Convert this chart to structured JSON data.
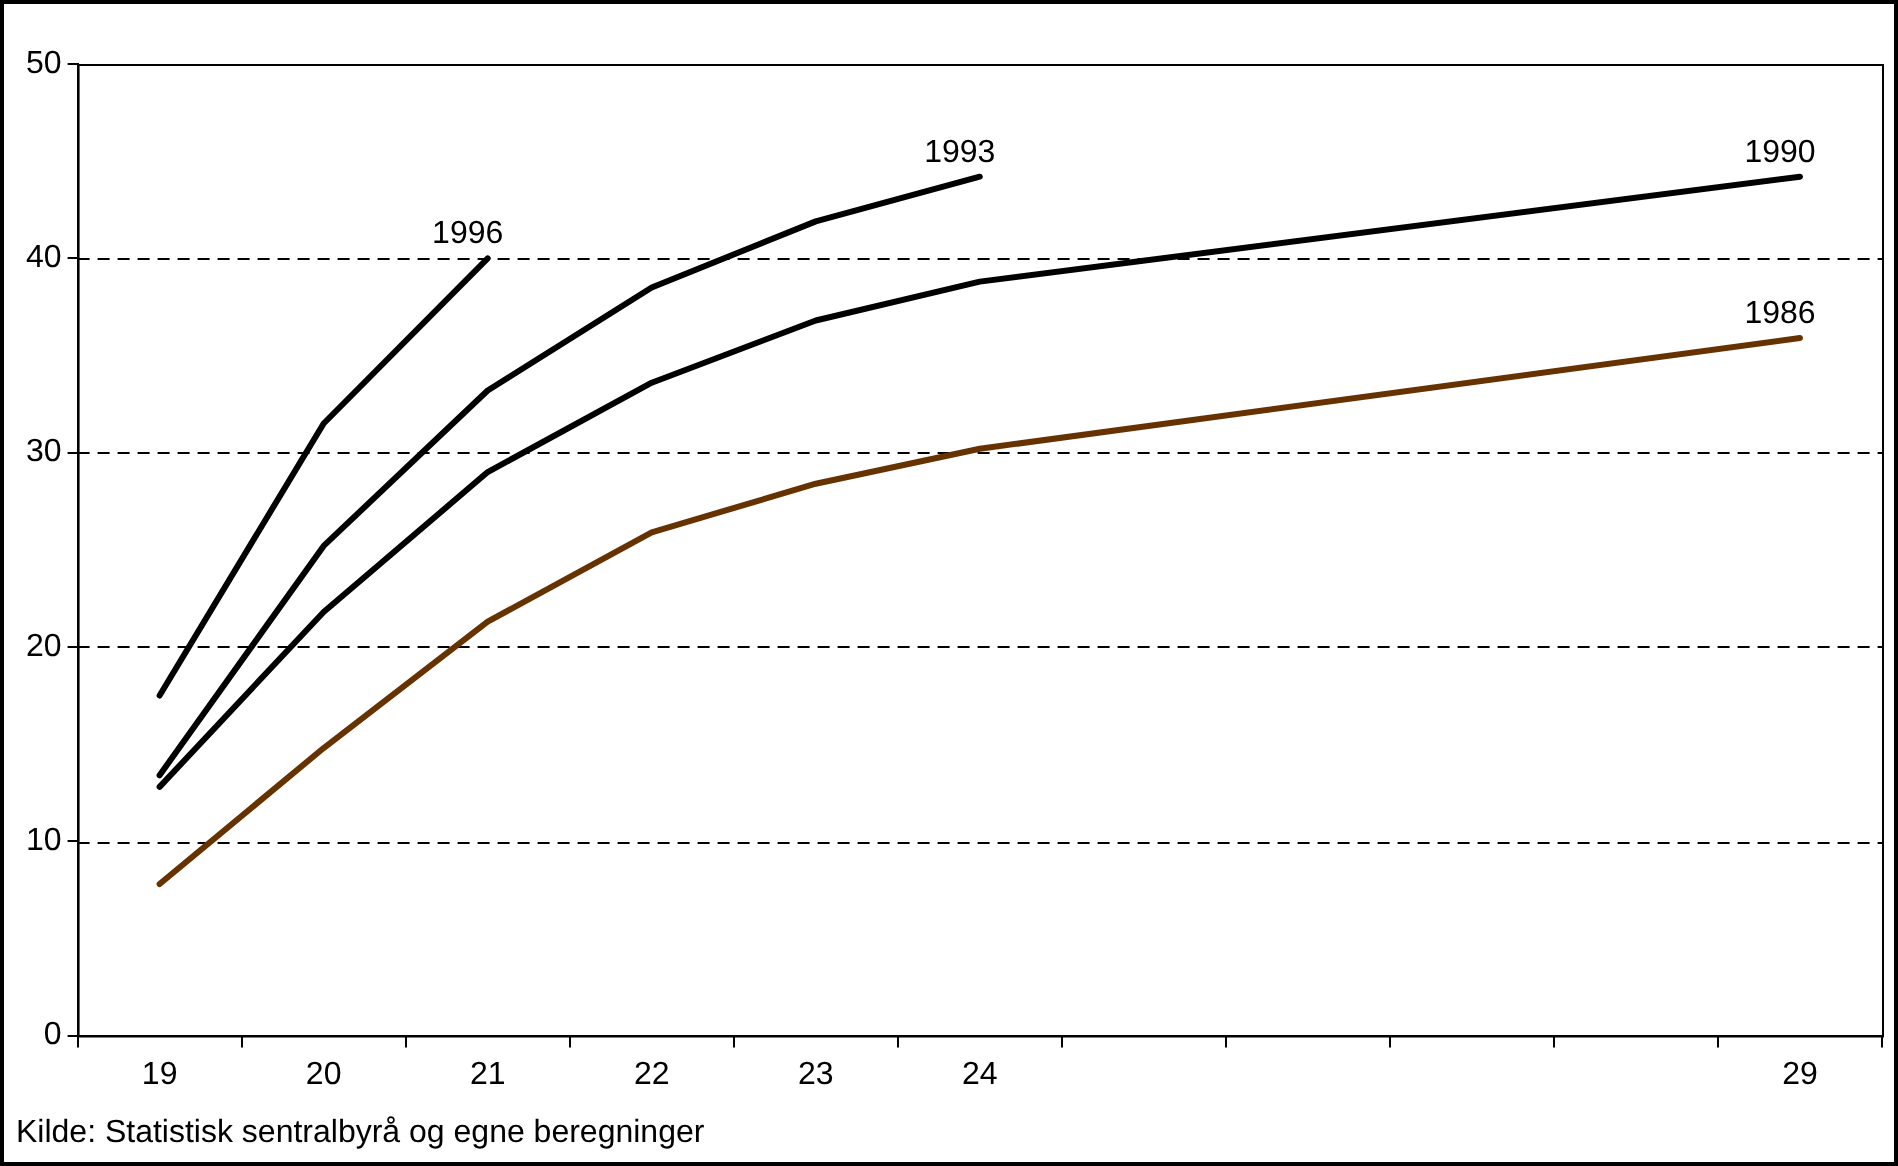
{
  "chart_data": {
    "type": "line",
    "categories": [
      "19",
      "20",
      "21",
      "22",
      "23",
      "24",
      null,
      null,
      null,
      null,
      "29"
    ],
    "series": [
      {
        "name": "1996",
        "color": "#000000",
        "values": [
          17.5,
          31.5,
          40.0,
          null,
          null,
          null,
          null,
          null,
          null,
          null,
          null
        ]
      },
      {
        "name": "1993",
        "color": "#000000",
        "values": [
          13.4,
          25.2,
          33.2,
          38.5,
          41.9,
          44.2,
          null,
          null,
          null,
          null,
          null
        ]
      },
      {
        "name": "1990",
        "color": "#000000",
        "values": [
          12.8,
          21.8,
          29.0,
          33.6,
          36.8,
          38.8,
          null,
          null,
          null,
          null,
          44.2
        ]
      },
      {
        "name": "1986",
        "color": "#663300",
        "values": [
          7.8,
          14.8,
          21.3,
          25.9,
          28.4,
          30.2,
          null,
          null,
          null,
          null,
          35.9
        ]
      }
    ],
    "ylim": [
      0,
      50
    ],
    "yticks": [
      0,
      10,
      20,
      30,
      40,
      50
    ],
    "grid": "y",
    "legend": false,
    "marker": "none",
    "line_style": "solid",
    "annotations": [
      "Kilde: Statistisk sentralbyrå og egne beregninger"
    ]
  }
}
